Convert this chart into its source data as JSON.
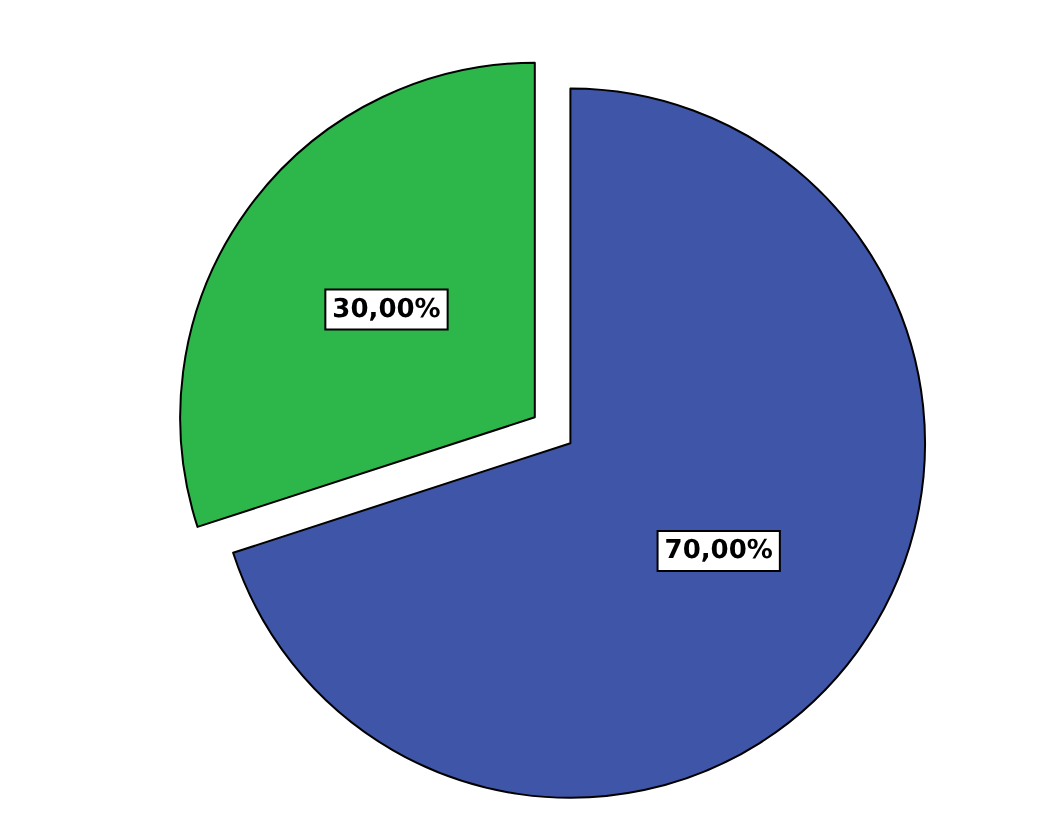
{
  "chart_data": {
    "type": "pie",
    "categories": [
      null,
      null
    ],
    "values": [
      70,
      30
    ],
    "colors": [
      "#3f55a8",
      "#2db64a"
    ],
    "value_labels": [
      "70,00%",
      "30,00%"
    ]
  }
}
